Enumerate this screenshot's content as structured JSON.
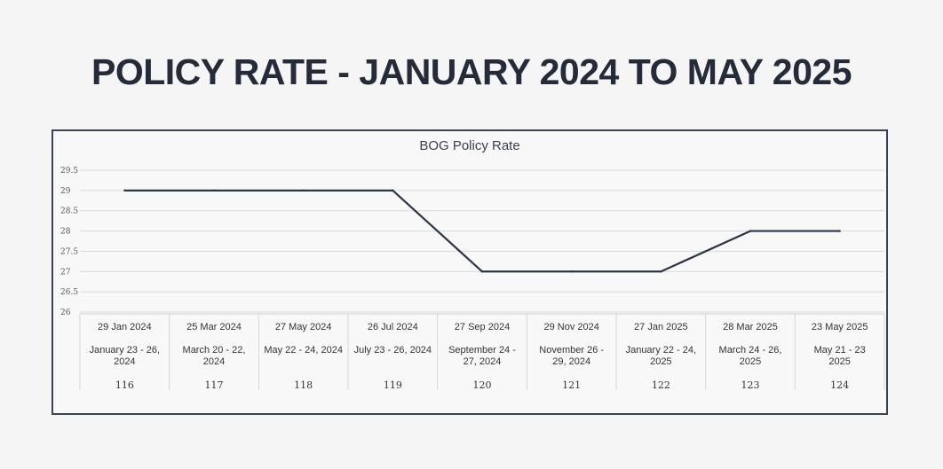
{
  "page_title": "POLICY RATE - JANUARY 2024 TO MAY 2025",
  "chart_data": {
    "type": "line",
    "title": "BOG Policy Rate",
    "xlabel": "",
    "ylabel": "",
    "ylim": [
      26,
      29.5
    ],
    "yticks": [
      "29.5",
      "29",
      "28.5",
      "28",
      "27.5",
      "27",
      "26.5",
      "26"
    ],
    "grid": true,
    "categories": [
      {
        "date": "29 Jan 2024",
        "meeting": [
          "January 23 - 26,",
          "2024"
        ],
        "number": "116"
      },
      {
        "date": "25 Mar 2024",
        "meeting": [
          "March 20 - 22,",
          "2024"
        ],
        "number": "117"
      },
      {
        "date": "27 May 2024",
        "meeting": [
          "May 22 - 24, 2024"
        ],
        "number": "118"
      },
      {
        "date": "26 Jul 2024",
        "meeting": [
          "July 23 - 26, 2024"
        ],
        "number": "119"
      },
      {
        "date": "27 Sep 2024",
        "meeting": [
          "September 24 -",
          "27, 2024"
        ],
        "number": "120"
      },
      {
        "date": "29 Nov 2024",
        "meeting": [
          "November 26 -",
          "29, 2024"
        ],
        "number": "121"
      },
      {
        "date": "27 Jan 2025",
        "meeting": [
          "January 22 - 24,",
          "2025"
        ],
        "number": "122"
      },
      {
        "date": "28 Mar 2025",
        "meeting": [
          "March 24 - 26,",
          "2025"
        ],
        "number": "123"
      },
      {
        "date": "23 May 2025",
        "meeting": [
          "May 21 - 23",
          "2025"
        ],
        "number": "124"
      }
    ],
    "series": [
      {
        "values": [
          29,
          29,
          29,
          29,
          27,
          27,
          27,
          28,
          28
        ],
        "color": "#2c3447"
      }
    ]
  }
}
